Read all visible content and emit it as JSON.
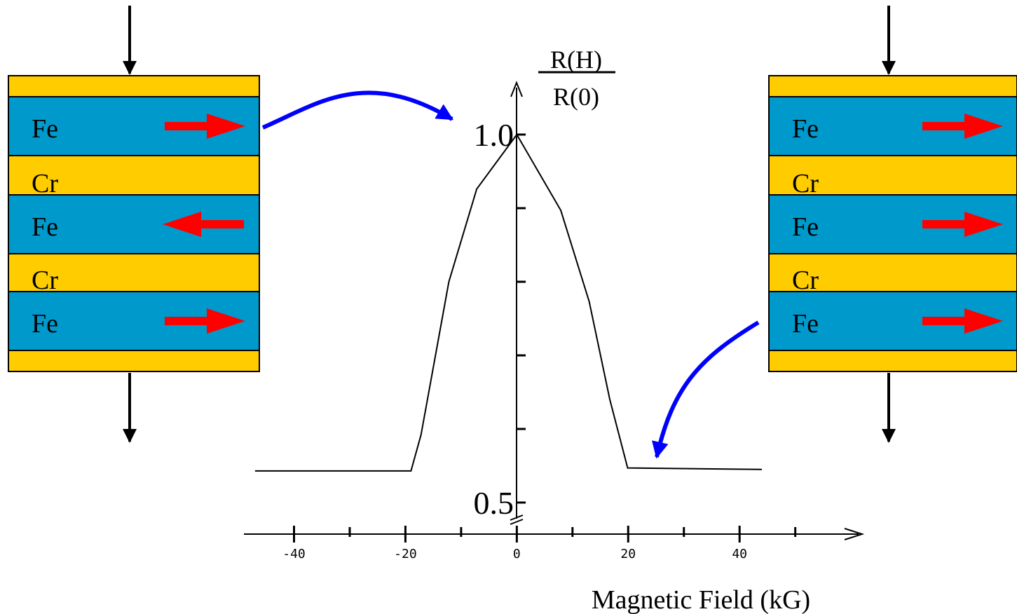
{
  "chart_data": {
    "type": "line",
    "y_label_top": "R(H)",
    "y_label_bottom": "R(0)",
    "x_label": "Magnetic Field (kG)",
    "x": [
      -47,
      -19,
      -17.2,
      -12.2,
      -7.2,
      0,
      7.9,
      13,
      16.7,
      19.9,
      44
    ],
    "values": [
      0.543,
      0.543,
      0.592,
      0.8,
      0.926,
      1.0,
      0.897,
      0.773,
      0.64,
      0.547,
      0.545
    ],
    "color": "#000000",
    "xlim": [
      -49,
      62
    ],
    "ylim": [
      0.5,
      1.07
    ],
    "xticks": [
      -40,
      -20,
      0,
      20,
      40
    ],
    "xminor_ticks": [
      -30,
      -10,
      10,
      30,
      50
    ],
    "yticks": [
      {
        "value": 0.5,
        "label": "0.5"
      },
      {
        "value": 1,
        "label": "1.0"
      }
    ],
    "yminor_ticks": [
      0.6,
      0.7,
      0.8,
      0.9
    ]
  },
  "layers_left": [
    "Fe",
    "Cr",
    "Fe",
    "Cr",
    "Fe"
  ],
  "layers_right": [
    "Fe",
    "Cr",
    "Fe",
    "Cr",
    "Fe"
  ]
}
